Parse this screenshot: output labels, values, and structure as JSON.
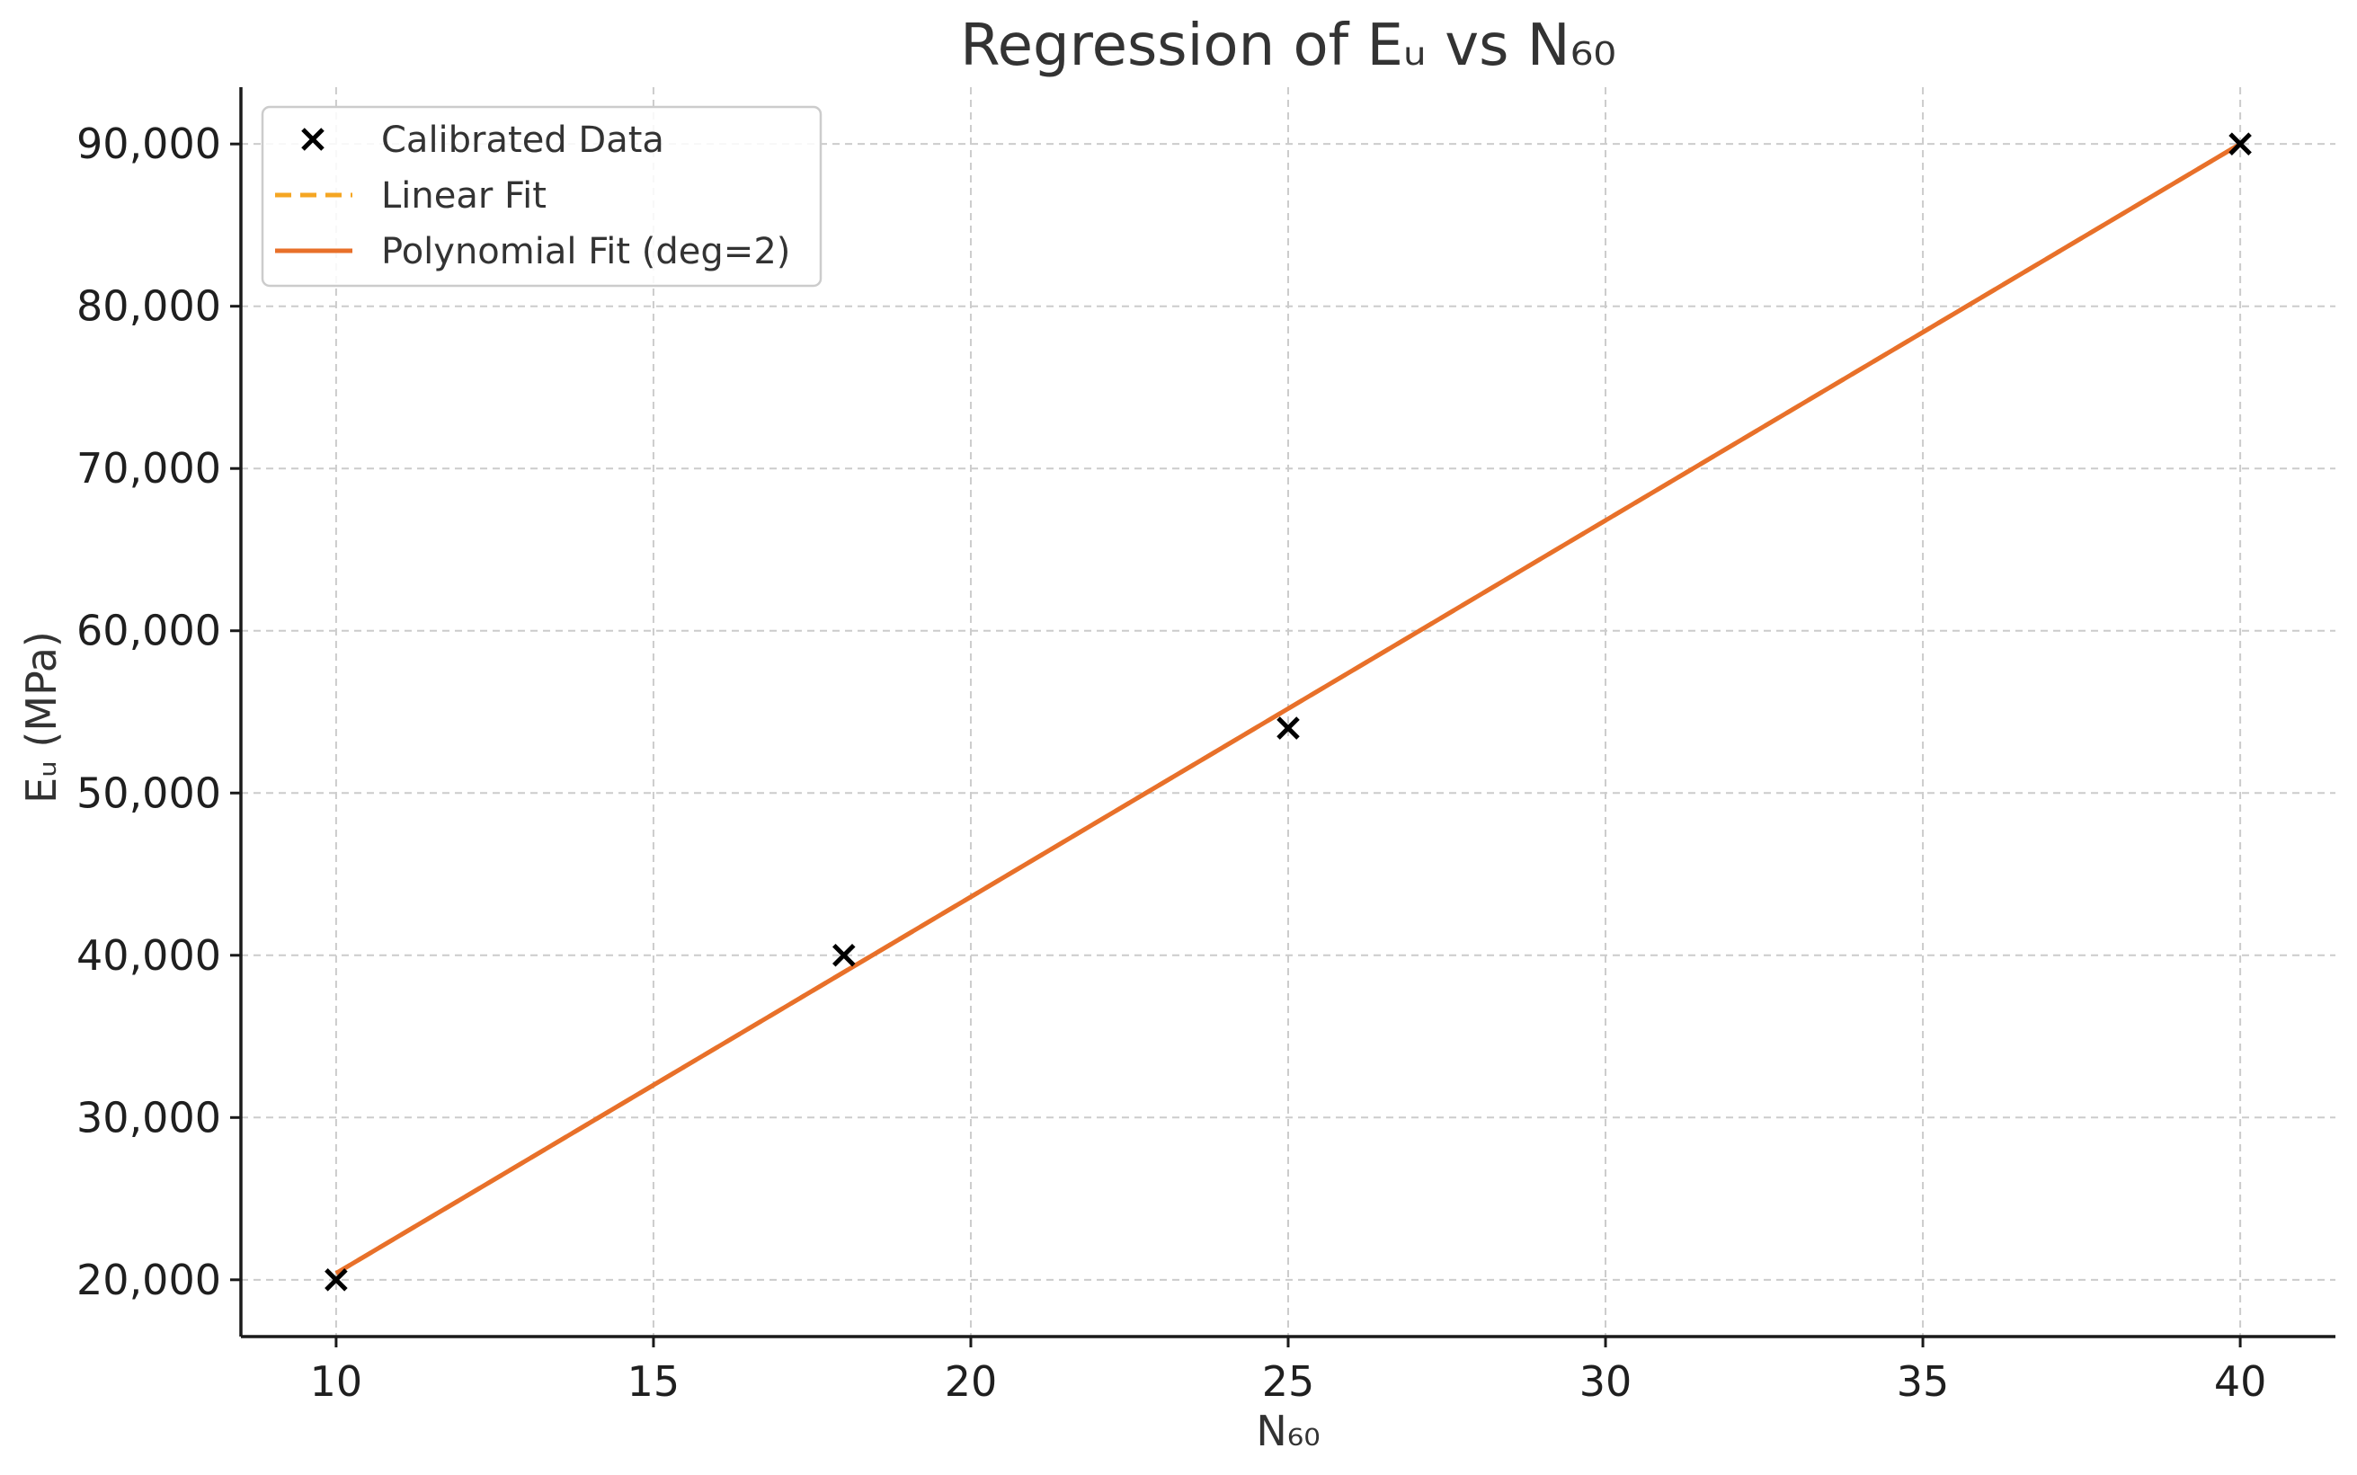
{
  "chart_data": {
    "type": "scatter",
    "title": "Regression of Eᵤ vs N₆₀",
    "xlabel": "N₆₀",
    "ylabel": "Eᵤ (MPa)",
    "xlim": [
      8.5,
      41.5
    ],
    "ylim": [
      16500,
      93500
    ],
    "xticks": [
      10,
      15,
      20,
      25,
      30,
      35,
      40
    ],
    "yticks": [
      20000,
      30000,
      40000,
      50000,
      60000,
      70000,
      80000,
      90000
    ],
    "xtick_labels": [
      "10",
      "15",
      "20",
      "25",
      "30",
      "35",
      "40"
    ],
    "ytick_labels": [
      "20,000",
      "30,000",
      "40,000",
      "50,000",
      "60,000",
      "70,000",
      "80,000",
      "90,000"
    ],
    "grid": true,
    "legend_position": "top-left",
    "series": [
      {
        "name": "Calibrated Data",
        "kind": "scatter",
        "marker": "x",
        "color": "#000000",
        "x": [
          10,
          18,
          25,
          40
        ],
        "y": [
          20000,
          40000,
          54000,
          90000
        ]
      },
      {
        "name": "Linear Fit",
        "kind": "line",
        "style": "dashed",
        "color": "#f5a623",
        "x": [
          10,
          40
        ],
        "y": [
          20400,
          90000
        ]
      },
      {
        "name": "Polynomial Fit (deg=2)",
        "kind": "line",
        "style": "solid",
        "color": "#e8702a",
        "x": [
          10,
          15,
          20,
          25,
          30,
          35,
          40
        ],
        "y": [
          20400,
          32000,
          43600,
          55200,
          66800,
          78400,
          90000
        ]
      }
    ]
  }
}
